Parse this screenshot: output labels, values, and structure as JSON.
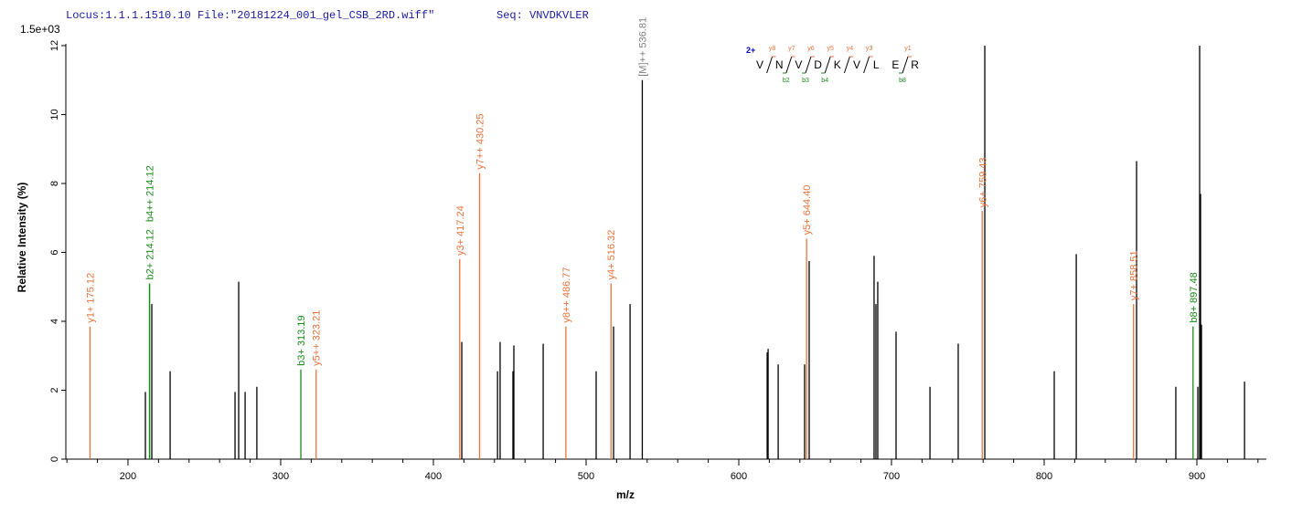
{
  "chart_data": {
    "type": "spectrum",
    "header": "Locus:1.1.1.1510.10 File:\"20181224_001_gel_CSB_2RD.wiff\"",
    "seq_label": "Seq: VNVDKVLER",
    "scale_label": "1.5e+03",
    "xlabel": "m/z",
    "ylabel": "Relative  Intensity (%)",
    "xlim": [
      159.3,
      945.5
    ],
    "ylim": [
      0,
      12
    ],
    "xticks": [
      200,
      300,
      400,
      500,
      600,
      700,
      800,
      900
    ],
    "x_minor_ticks": [
      160,
      180,
      220,
      240,
      260,
      280,
      320,
      340,
      360,
      380,
      420,
      440,
      460,
      480,
      520,
      540,
      560,
      580,
      620,
      640,
      660,
      680,
      720,
      740,
      760,
      780,
      820,
      840,
      860,
      880,
      920,
      940
    ],
    "yticks": [
      0,
      2,
      4,
      6,
      8,
      10,
      12
    ],
    "peak_color": "#000000",
    "peaks": {
      "x": [
        211.4,
        215.6,
        227.6,
        270.1,
        272.5,
        276.7,
        284.4,
        418.6,
        442.0,
        443.7,
        452.1,
        452.7,
        471.9,
        506.6,
        518.0,
        528.8,
        618.6,
        619.2,
        625.8,
        643.1,
        646.1,
        688.6,
        689.8,
        691.0,
        703.0,
        725.2,
        743.7,
        761.1,
        806.6,
        821.0,
        860.5,
        886.2,
        900.6,
        901.8,
        902.4,
        903.0,
        931.2
      ],
      "values": [
        1.95,
        4.5,
        2.55,
        1.95,
        5.15,
        1.95,
        2.1,
        3.4,
        2.55,
        3.4,
        2.55,
        3.3,
        3.35,
        2.55,
        3.85,
        4.5,
        3.1,
        3.2,
        2.75,
        2.75,
        5.75,
        5.9,
        4.5,
        5.15,
        3.7,
        2.1,
        3.35,
        12.0,
        2.55,
        5.95,
        8.65,
        2.1,
        2.1,
        12.0,
        7.7,
        3.9,
        2.25
      ]
    },
    "annotations": [
      {
        "x": 175.12,
        "value": 3.85,
        "label": "y1+ 175.12",
        "color": "#e8733a"
      },
      {
        "x": 214.12,
        "value": 5.1,
        "label": "b2+ 214.12",
        "color": "#1a8a1a"
      },
      {
        "x": 214.12,
        "value": 5.1,
        "label": "b4++ 214.12",
        "color": "#1a8a1a"
      },
      {
        "x": 313.19,
        "value": 2.6,
        "label": "b3+ 313.19",
        "color": "#1a8a1a"
      },
      {
        "x": 323.21,
        "value": 2.6,
        "label": "y5++ 323.21",
        "color": "#e8733a"
      },
      {
        "x": 417.24,
        "value": 5.8,
        "label": "y3+ 417.24",
        "color": "#e8733a"
      },
      {
        "x": 430.25,
        "value": 8.3,
        "label": "y7++ 430.25",
        "color": "#e8733a"
      },
      {
        "x": 486.77,
        "value": 3.85,
        "label": "y8++ 486.77",
        "color": "#e8733a"
      },
      {
        "x": 516.32,
        "value": 5.1,
        "label": "y4+ 516.32",
        "color": "#e8733a"
      },
      {
        "x": 536.81,
        "value": 11.0,
        "label": "[M]++ 536.81",
        "color": "#000000",
        "label_color": "#808080"
      },
      {
        "x": 644.4,
        "value": 6.4,
        "label": "y5+ 644.40",
        "color": "#e8733a"
      },
      {
        "x": 759.43,
        "value": 7.2,
        "label": "y6+ 759.43",
        "color": "#e8733a"
      },
      {
        "x": 858.51,
        "value": 4.5,
        "label": "y7+ 858.51",
        "color": "#e8733a"
      },
      {
        "x": 897.48,
        "value": 3.85,
        "label": "b8+ 897.48",
        "color": "#1a8a1a"
      }
    ],
    "sequence": {
      "charge": "2+",
      "residues": [
        "V",
        "N",
        "V",
        "D",
        "K",
        "V",
        "L",
        "E",
        "R"
      ],
      "y_labels": [
        "y8",
        "y7",
        "y6",
        "y5",
        "y4",
        "y3",
        null,
        "y1"
      ],
      "b_labels": [
        null,
        "b2",
        "b3",
        "b4",
        null,
        null,
        null,
        "b8"
      ]
    }
  }
}
